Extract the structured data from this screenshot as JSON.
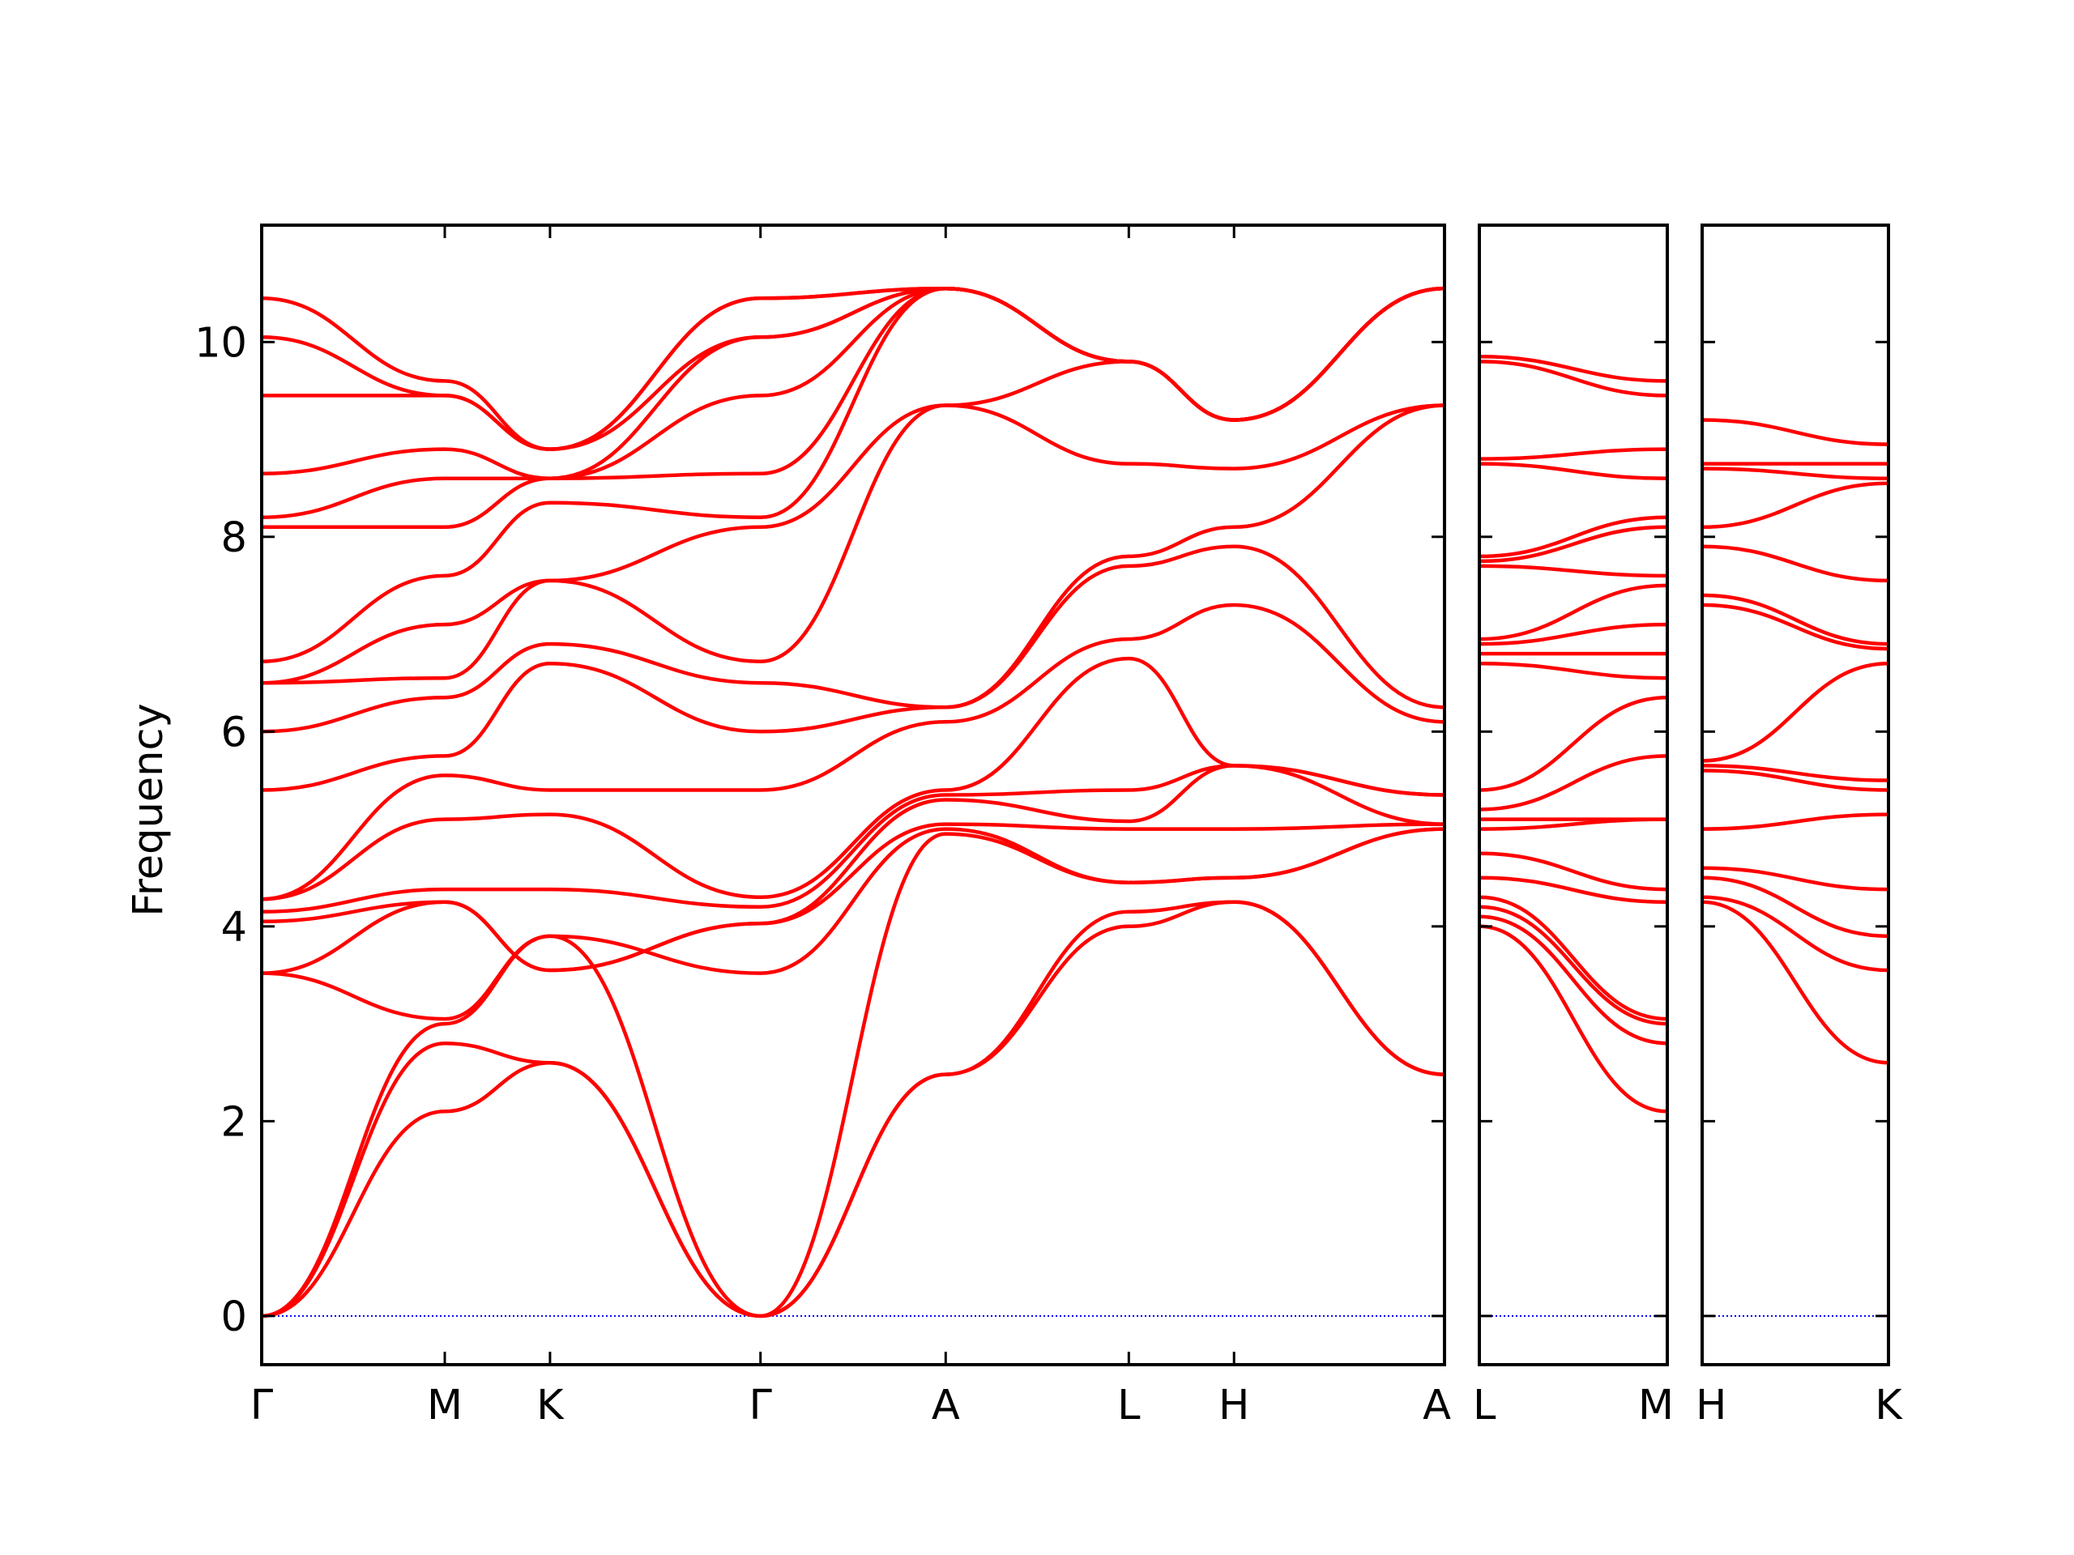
{
  "chart_data": {
    "type": "line",
    "ylabel": "Frequency",
    "ylim": [
      -0.5,
      11.2
    ],
    "yticks": [
      0,
      2,
      4,
      6,
      8,
      10
    ],
    "colors": {
      "bands": "#ff0000",
      "zero_line": "#0000ff",
      "frame": "#000000"
    },
    "grid": false,
    "panels": [
      {
        "segments": [
          {
            "from": "Γ",
            "to": "M",
            "length": 0.87
          },
          {
            "from": "M",
            "to": "K",
            "length": 0.5
          },
          {
            "from": "K",
            "to": "Γ",
            "length": 1.0
          },
          {
            "from": "Γ",
            "to": "A",
            "length": 0.88
          },
          {
            "from": "A",
            "to": "L",
            "length": 0.87
          },
          {
            "from": "L",
            "to": "H",
            "length": 0.5
          },
          {
            "from": "H",
            "to": "A",
            "length": 1.0
          }
        ],
        "labels": [
          "Γ",
          "M",
          "K",
          "Γ",
          "A",
          "L",
          "H",
          "A"
        ],
        "bands": [
          [
            0,
            2.1,
            2.6,
            0,
            2.48,
            4.0,
            4.25,
            2.48
          ],
          [
            0,
            2.8,
            2.6,
            0,
            2.48,
            4.15,
            4.25,
            2.48
          ],
          [
            0,
            3.0,
            3.9,
            0,
            4.95,
            4.45,
            4.5,
            5.0
          ],
          [
            3.52,
            3.05,
            3.9,
            3.52,
            5.0,
            4.45,
            4.5,
            5.0
          ],
          [
            3.52,
            4.25,
            3.55,
            4.03,
            5.05,
            5.0,
            5.0,
            5.05
          ],
          [
            4.05,
            4.25,
            3.55,
            4.03,
            5.3,
            5.08,
            5.65,
            5.05
          ],
          [
            4.15,
            4.38,
            4.38,
            4.2,
            5.35,
            5.4,
            5.65,
            5.35
          ],
          [
            4.28,
            5.1,
            5.15,
            4.3,
            5.4,
            6.75,
            5.65,
            5.35
          ],
          [
            4.28,
            5.55,
            5.4,
            5.4,
            6.1,
            6.95,
            7.3,
            6.1
          ],
          [
            5.4,
            5.75,
            6.7,
            6.0,
            6.25,
            7.7,
            7.9,
            6.25
          ],
          [
            6.0,
            6.35,
            6.9,
            6.5,
            6.25,
            7.8,
            8.1,
            9.35
          ],
          [
            6.5,
            6.55,
            7.55,
            6.72,
            9.35,
            8.75,
            8.7,
            9.35
          ],
          [
            6.5,
            7.1,
            7.55,
            8.1,
            9.35,
            9.8,
            9.2,
            10.55
          ],
          [
            6.72,
            7.6,
            8.35,
            8.2,
            10.55,
            9.8,
            9.2,
            10.55
          ],
          [
            8.1,
            8.1,
            8.6,
            8.65,
            10.55,
            9.8,
            9.2,
            10.55
          ],
          [
            8.2,
            8.6,
            8.6,
            9.45,
            10.55,
            9.8,
            9.2,
            10.55
          ],
          [
            8.65,
            8.9,
            8.6,
            10.05,
            10.55,
            9.8,
            9.2,
            10.55
          ],
          [
            9.45,
            9.45,
            8.9,
            10.05,
            10.55,
            9.8,
            9.2,
            10.55
          ],
          [
            10.05,
            9.45,
            8.9,
            10.45,
            10.55,
            9.8,
            9.2,
            10.55
          ],
          [
            10.45,
            9.6,
            8.9,
            10.45,
            10.55,
            9.8,
            9.2,
            10.55
          ]
        ]
      },
      {
        "segments": [
          {
            "from": "L",
            "to": "M",
            "length": 0.88
          }
        ],
        "labels": [
          "L",
          "M"
        ],
        "bands": [
          [
            4.0,
            2.1
          ],
          [
            4.1,
            2.8
          ],
          [
            4.2,
            3.0
          ],
          [
            4.3,
            3.05
          ],
          [
            4.5,
            4.25
          ],
          [
            4.75,
            4.38
          ],
          [
            5.0,
            5.1
          ],
          [
            5.1,
            5.1
          ],
          [
            5.2,
            5.75
          ],
          [
            5.4,
            6.35
          ],
          [
            6.7,
            6.55
          ],
          [
            6.8,
            6.8
          ],
          [
            6.9,
            7.1
          ],
          [
            6.95,
            7.5
          ],
          [
            7.7,
            7.6
          ],
          [
            7.75,
            8.1
          ],
          [
            7.8,
            8.2
          ],
          [
            8.75,
            8.6
          ],
          [
            8.8,
            8.9
          ],
          [
            9.8,
            9.45
          ],
          [
            9.85,
            9.6
          ]
        ]
      },
      {
        "segments": [
          {
            "from": "H",
            "to": "K",
            "length": 0.88
          }
        ],
        "labels": [
          "H",
          "K"
        ],
        "bands": [
          [
            4.25,
            2.6
          ],
          [
            4.3,
            3.55
          ],
          [
            4.5,
            3.9
          ],
          [
            4.6,
            4.38
          ],
          [
            5.0,
            5.15
          ],
          [
            5.6,
            5.4
          ],
          [
            5.65,
            5.5
          ],
          [
            5.7,
            6.7
          ],
          [
            7.3,
            6.85
          ],
          [
            7.4,
            6.9
          ],
          [
            7.9,
            7.55
          ],
          [
            8.1,
            8.55
          ],
          [
            8.7,
            8.6
          ],
          [
            8.75,
            8.75
          ],
          [
            9.2,
            8.95
          ]
        ]
      }
    ]
  }
}
